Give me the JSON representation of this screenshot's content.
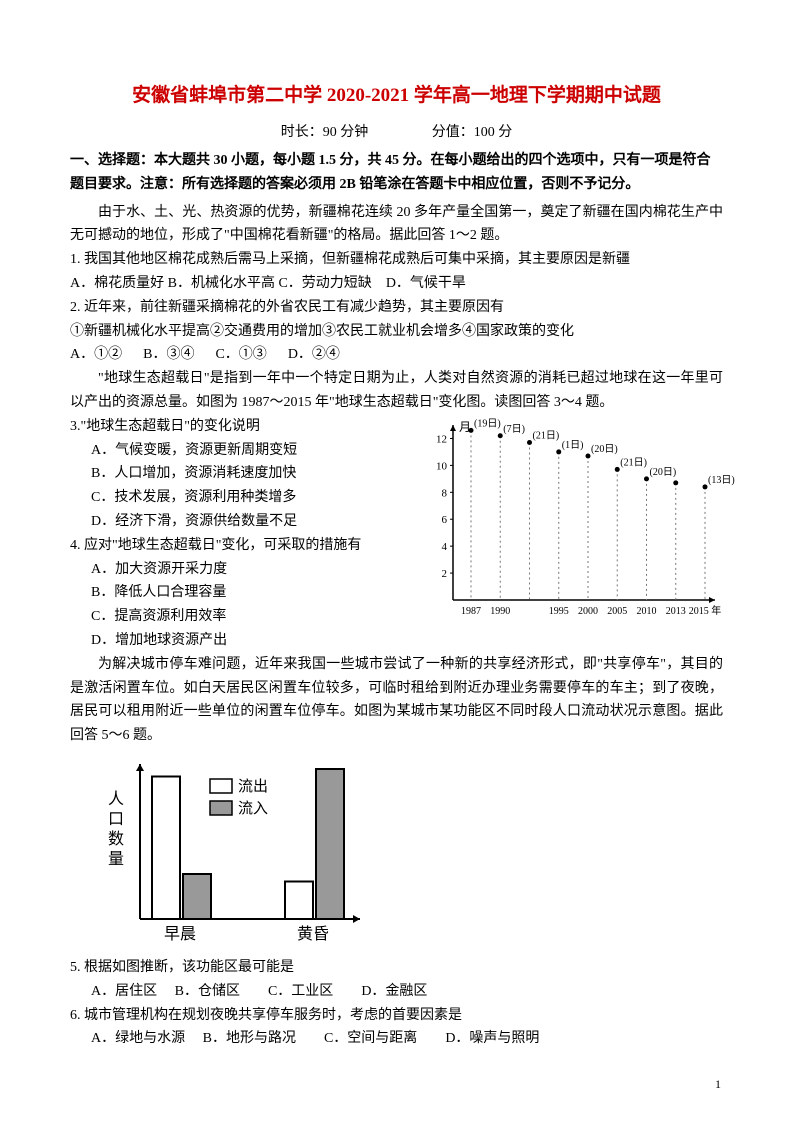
{
  "title": "安徽省蚌埠市第二中学 2020-2021 学年高一地理下学期期中试题",
  "meta": {
    "duration": "时长：90 分钟",
    "score": "分值：100 分"
  },
  "header": "一、选择题：本大题共 30 小题，每小题 1.5 分，共 45 分。在每小题给出的四个选项中，只有一项是符合题目要求。注意：所有选择题的答案必须用 2B 铅笔涂在答题卡中相应位置，否则不予记分。",
  "p1": "由于水、土、光、热资源的优势，新疆棉花连续 20 多年产量全国第一，奠定了新疆在国内棉花生产中无可撼动的地位，形成了\"中国棉花看新疆\"的格局。据此回答 1～2 题。",
  "q1": "1. 我国其他地区棉花成熟后需马上采摘，但新疆棉花成熟后可集中采摘，其主要原因是新疆",
  "q1o": {
    "a": "A．棉花质量好",
    "b": "B．机械化水平高",
    "c": "C．劳动力短缺",
    "d": "D．气候干旱"
  },
  "q2a": "2. 近年来，前往新疆采摘棉花的外省农民工有减少趋势，其主要原因有",
  "q2b": "①新疆机械化水平提高②交通费用的增加③农民工就业机会增多④国家政策的变化",
  "q2o": {
    "a": "A．①②",
    "b": "B．③④",
    "c": "C．①③",
    "d": "D．②④"
  },
  "p2": "\"地球生态超载日\"是指到一年中一个特定日期为止，人类对自然资源的消耗已超过地球在这一年里可以产出的资源总量。如图为 1987～2015 年\"地球生态超载日\"变化图。读图回答 3～4 题。",
  "q3": "3.\"地球生态超载日\"的变化说明",
  "q3o": {
    "a": "A．气候变暖，资源更新周期变短",
    "b": "B．人口增加，资源消耗速度加快",
    "c": "C．技术发展，资源利用种类增多",
    "d": "D．经济下滑，资源供给数量不足"
  },
  "q4": "4. 应对\"地球生态超载日\"变化，可采取的措施有",
  "q4o": {
    "a": "A．加大资源开采力度",
    "b": "B．降低人口合理容量",
    "c": "C．提高资源利用效率",
    "d": "D．增加地球资源产出"
  },
  "p3": "为解决城市停车难问题，近年来我国一些城市尝试了一种新的共享经济形式，即\"共享停车\"，其目的是激活闲置车位。如白天居民区闲置车位较多，可临时租给到附近办理业务需要停车的车主；到了夜晚，居民可以租用附近一些单位的闲置车位停车。如图为某城市某功能区不同时段人口流动状况示意图。据此回答 5～6 题。",
  "q5": "5. 根据如图推断，该功能区最可能是",
  "q5o": {
    "a": "A．居住区",
    "b": "B．仓储区",
    "c": "C．工业区",
    "d": "D．金融区"
  },
  "q6": "6. 城市管理机构在规划夜晚共享停车服务时，考虑的首要因素是",
  "q6o": {
    "a": "A．绿地与水源",
    "b": "B．地形与路况",
    "c": "C．空间与距离",
    "d": "D．噪声与照明"
  },
  "chart1": {
    "ylabel": "月",
    "yticks": [
      2,
      4,
      6,
      8,
      10,
      12
    ],
    "points": [
      {
        "year": "1987",
        "label": "(19日)",
        "m": 12.6
      },
      {
        "year": "1990",
        "label": "(7日)",
        "m": 12.2
      },
      {
        "year": "",
        "label": "(21日)",
        "m": 11.7
      },
      {
        "year": "1995",
        "label": "(1日)",
        "m": 11.0
      },
      {
        "year": "2000",
        "label": "(20日)",
        "m": 10.7
      },
      {
        "year": "2005",
        "label": "(21日)",
        "m": 9.7
      },
      {
        "year": "2010",
        "label": "(20日)",
        "m": 9.0
      },
      {
        "year": "2013",
        "label": "",
        "m": 8.7
      },
      {
        "year": "2015 年",
        "label": "(13日)",
        "m": 8.4
      }
    ],
    "colors": {
      "axis": "#000000",
      "dash": "#777777",
      "point": "#000000",
      "text": "#000000",
      "bg": "#ffffff"
    }
  },
  "chart2": {
    "ylabel": "人口数量",
    "legend": {
      "out": "流出",
      "in": "流入"
    },
    "xlabels": {
      "m": "早晨",
      "e": "黄昏"
    },
    "colors": {
      "out": "#ffffff",
      "in": "#999999",
      "border": "#000000",
      "text": "#000000"
    },
    "bars": {
      "morning_out": 95,
      "morning_in": 30,
      "evening_out": 25,
      "evening_in": 100
    }
  },
  "pagenum": "1"
}
